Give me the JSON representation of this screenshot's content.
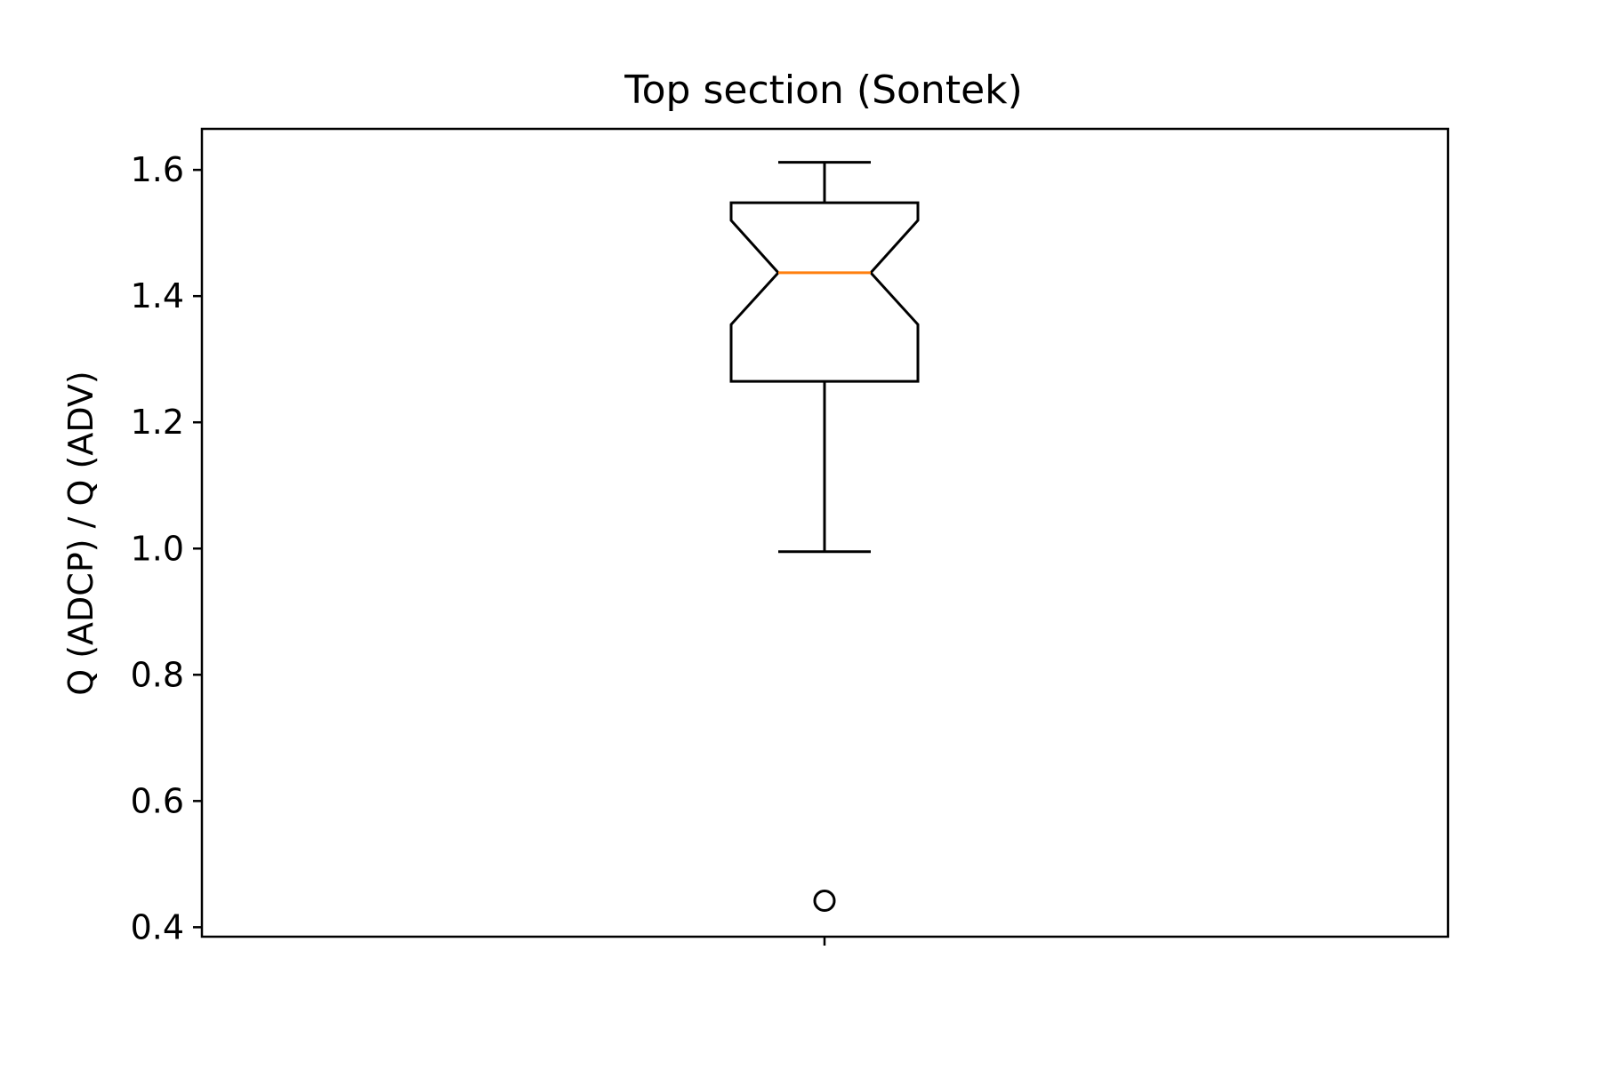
{
  "chart_data": {
    "type": "boxplot",
    "title": "Top section (Sontek)",
    "xlabel": "",
    "ylabel": "Q (ADCP) / Q (ADV)",
    "ylim": [
      0.385,
      1.665
    ],
    "yticks": [
      0.4,
      0.6,
      0.8,
      1.0,
      1.2,
      1.4,
      1.6
    ],
    "ytick_labels": [
      "0.4",
      "0.6",
      "0.8",
      "1.0",
      "1.2",
      "1.4",
      "1.6"
    ],
    "xticks": [
      1
    ],
    "xtick_labels": [
      ""
    ],
    "grid": false,
    "notched": true,
    "box": {
      "whisker_low": 0.995,
      "q1": 1.265,
      "notch_low": 1.355,
      "median": 1.437,
      "notch_high": 1.52,
      "q3": 1.548,
      "whisker_high": 1.612,
      "outliers": [
        0.442
      ]
    },
    "colors": {
      "box": "#000000",
      "median": "#ff7f0e"
    }
  }
}
